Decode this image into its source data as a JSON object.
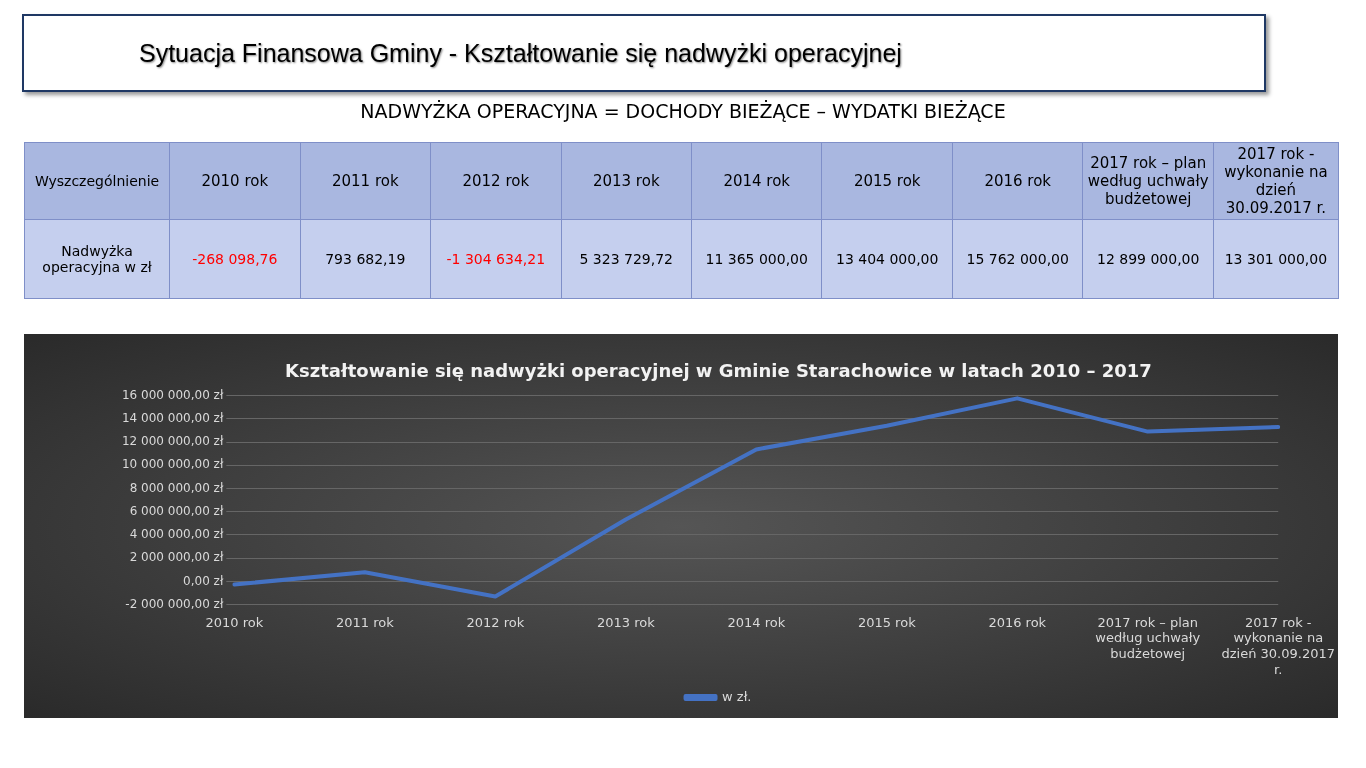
{
  "chart_data": {
    "type": "line",
    "title": "Sytuacja Finansowa Gminy - Kształtowanie się nadwyżki operacyjnej",
    "subtitle": "NADWYŻKA OPERACYJNA  =  DOCHODY BIEŻĄCE – WYDATKI BIEŻĄCE",
    "annotations": [
      "Kształtowanie się nadwyżki operacyjnej w Gminie Starachowice w latach 2010 – 2017",
      "Wyszczególnienie",
      "Nadwyżka operacyjna w zł"
    ],
    "categories": [
      "2010 rok",
      "2011 rok",
      "2012 rok",
      "2013 rok",
      "2014 rok",
      "2015 rok",
      "2016 rok",
      "2017 rok – plan według uchwały budżetowej",
      "2017 rok  - wykonanie na dzień 30.09.2017 r."
    ],
    "series": [
      {
        "name": "w zł.",
        "color": "#4472c4",
        "values": [
          -268098.76,
          793682.19,
          -1304634.21,
          5323729.72,
          11365000,
          13404000,
          15762000,
          12899000,
          13301000
        ],
        "value_labels": [
          "-268 098,76",
          "793 682,19",
          "-1 304 634,21",
          "5 323 729,72",
          "11 365 000,00",
          "13 404 000,00",
          "15 762 000,00",
          "12 899 000,00",
          "13 301 000,00"
        ]
      }
    ],
    "ylim": [
      -2000000,
      16000000
    ],
    "yticks": [
      {
        "value": -2000000,
        "label": "-2 000 000,00 zł"
      },
      {
        "value": 0,
        "label": "0,00 zł"
      },
      {
        "value": 2000000,
        "label": "2 000 000,00 zł"
      },
      {
        "value": 4000000,
        "label": "4 000 000,00 zł"
      },
      {
        "value": 6000000,
        "label": "6 000 000,00 zł"
      },
      {
        "value": 8000000,
        "label": "8 000 000,00 zł"
      },
      {
        "value": 10000000,
        "label": "10 000 000,00 zł"
      },
      {
        "value": 12000000,
        "label": "12 000 000,00 zł"
      },
      {
        "value": 14000000,
        "label": "14 000 000,00 zł"
      },
      {
        "value": 16000000,
        "label": "16 000 000,00 zł"
      }
    ],
    "grid": "y",
    "legend": "bottom",
    "marker": "none",
    "line_style": "solid"
  }
}
